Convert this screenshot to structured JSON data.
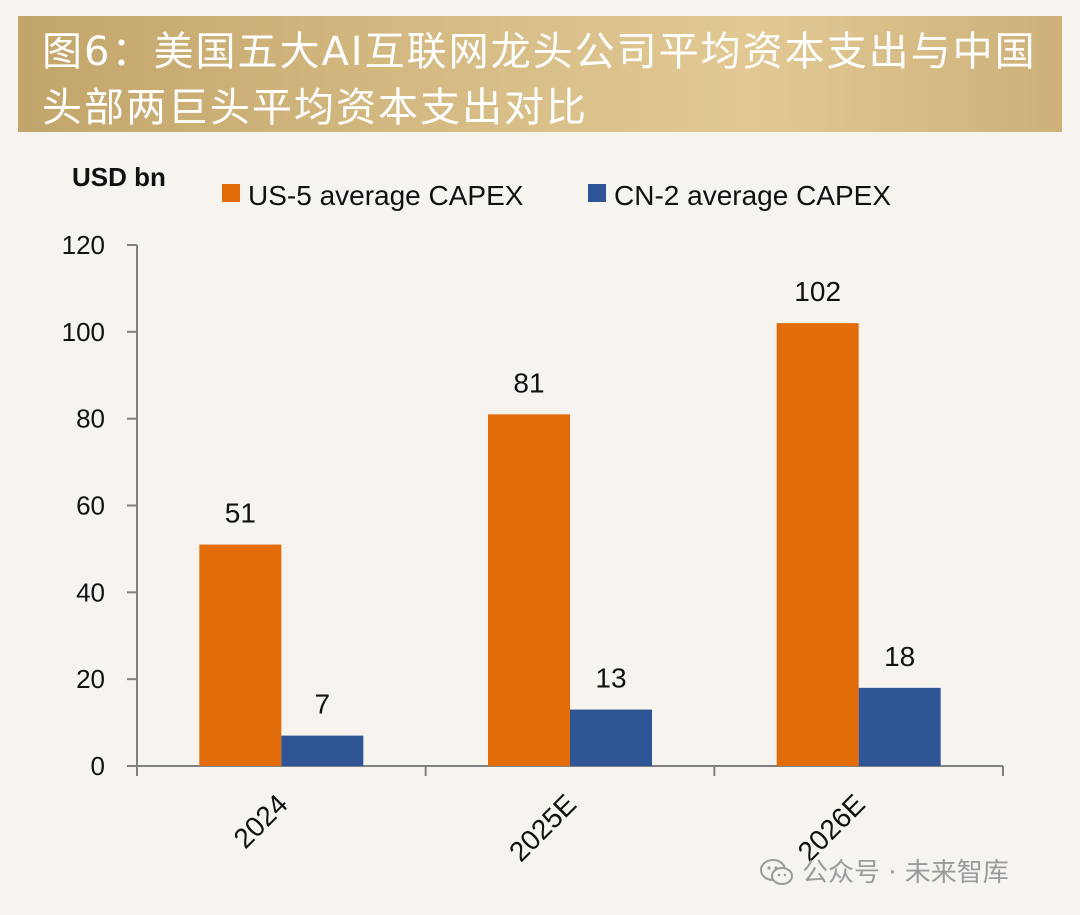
{
  "title": "图6：美国五大AI互联网龙头公司平均资本支出与中国头部两巨头平均资本支出对比",
  "chart_data": {
    "type": "bar",
    "ylabel": "USD bn",
    "categories": [
      "2024",
      "2025E",
      "2026E"
    ],
    "series": [
      {
        "name": "US-5 average CAPEX",
        "color": "#e36c0a",
        "values": [
          51,
          81,
          102
        ]
      },
      {
        "name": "CN-2 average CAPEX",
        "color": "#2f5597",
        "values": [
          7,
          13,
          18
        ]
      }
    ],
    "ylim": [
      0,
      120
    ],
    "yticks": [
      0,
      20,
      40,
      60,
      80,
      100,
      120
    ],
    "legend_position": "top",
    "grid": false
  },
  "watermark": {
    "text": "公众号 · 未来智库",
    "icon": "wechat-icon"
  }
}
